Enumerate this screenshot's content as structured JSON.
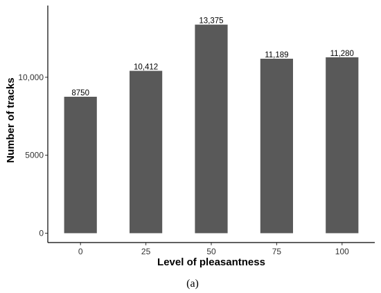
{
  "chart_data": {
    "type": "bar",
    "xlabel": "Level of pleasantness",
    "ylabel": "Number of tracks",
    "categories": [
      "0",
      "25",
      "50",
      "75",
      "100"
    ],
    "values": [
      8750,
      10412,
      13375,
      11189,
      11280
    ],
    "data_labels": [
      "8750",
      "10,412",
      "13,375",
      "11,189",
      "11,280"
    ],
    "yticks": [
      0,
      5000,
      10000
    ],
    "ytick_labels": [
      "0",
      "5000",
      "10,000"
    ],
    "ylim": [
      -600,
      14600
    ],
    "bar_color": "#595959",
    "grid": false
  },
  "caption": "(a)"
}
